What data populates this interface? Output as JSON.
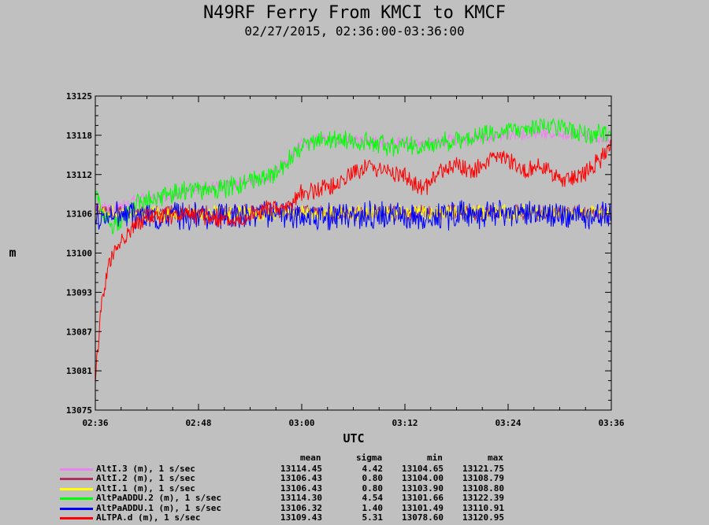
{
  "title": "N49RF Ferry From KMCI to KMCF",
  "subtitle": "02/27/2015, 02:36:00-03:36:00",
  "chart_data": {
    "type": "line",
    "xlabel": "UTC",
    "ylabel": "m",
    "x_ticks": [
      "02:36",
      "02:48",
      "03:00",
      "03:12",
      "03:24",
      "03:36"
    ],
    "x_range_minutes": [
      0,
      60
    ],
    "y_ticks": [
      13075,
      13081,
      13087,
      13093,
      13100,
      13106,
      13112,
      13118,
      13125
    ],
    "ylim": [
      13075,
      13125
    ],
    "grid": false,
    "legend_placement": "bottom",
    "legend_headers": [
      "mean",
      "sigma",
      "min",
      "max"
    ],
    "series": [
      {
        "name": "AltI.3 (m), 1 s/sec",
        "color": "#ee82ee",
        "stats": {
          "mean": "13114.45",
          "sigma": "4.42",
          "min": "13104.65",
          "max": "13121.75"
        },
        "x": [
          0,
          2,
          5,
          8,
          11,
          14,
          17,
          20,
          22,
          24,
          26,
          30,
          34,
          38,
          42,
          46,
          50,
          54,
          58,
          60
        ],
        "y": [
          13108,
          13107,
          13108.5,
          13109,
          13110,
          13110.5,
          13111,
          13112,
          13114,
          13117.5,
          13118,
          13118,
          13117.5,
          13117.5,
          13118,
          13118.5,
          13119,
          13119,
          13118.5,
          13118
        ],
        "noise": 0.8
      },
      {
        "name": "AltI.2 (m), 1 s/sec",
        "color": "#b03060",
        "stats": {
          "mean": "13106.43",
          "sigma": "0.80",
          "min": "13104.00",
          "max": "13108.79"
        },
        "x": [
          0,
          60
        ],
        "y": [
          13106.4,
          13106.4
        ],
        "noise": 1.1
      },
      {
        "name": "AltI.1 (m), 1 s/sec",
        "color": "#ffff00",
        "stats": {
          "mean": "13106.43",
          "sigma": "0.80",
          "min": "13103.90",
          "max": "13108.80"
        },
        "x": [
          0,
          60
        ],
        "y": [
          13106.4,
          13106.4
        ],
        "noise": 1.1
      },
      {
        "name": "AltPaADDU.2 (m), 1 s/sec",
        "color": "#00ff00",
        "stats": {
          "mean": "13114.30",
          "sigma": "4.54",
          "min": "13101.66",
          "max": "13122.39"
        },
        "x": [
          0,
          1,
          2,
          5,
          8,
          11,
          14,
          17,
          20,
          22,
          24,
          26,
          30,
          34,
          38,
          42,
          46,
          50,
          54,
          58,
          60
        ],
        "y": [
          13109,
          13106,
          13104,
          13108,
          13109,
          13110,
          13110,
          13111,
          13112,
          13114,
          13117,
          13118,
          13118,
          13117,
          13117,
          13118,
          13119,
          13120,
          13120,
          13119,
          13119
        ],
        "noise": 1.4
      },
      {
        "name": "AltPaADDU.1 (m), 1 s/sec",
        "color": "#0000ff",
        "stats": {
          "mean": "13106.32",
          "sigma": "1.40",
          "min": "13101.49",
          "max": "13110.91"
        },
        "x": [
          0,
          60
        ],
        "y": [
          13106,
          13106
        ],
        "noise": 1.9
      },
      {
        "name": "ALTPA.d (m), 1 s/sec",
        "color": "#ff0000",
        "stats": {
          "mean": "13109.43",
          "sigma": "5.31",
          "min": "13078.60",
          "max": "13120.95"
        },
        "x": [
          0,
          0.3,
          0.8,
          1.5,
          2.5,
          3.5,
          4.5,
          6,
          8,
          10,
          12,
          14,
          16,
          18,
          20,
          22,
          24,
          26,
          28,
          30,
          32,
          34,
          36,
          38,
          40,
          42,
          44,
          46,
          48,
          50,
          52,
          54,
          56,
          58,
          60
        ],
        "y": [
          13080,
          13085,
          13093,
          13098,
          13101,
          13103,
          13104,
          13106,
          13106,
          13106,
          13106,
          13105.5,
          13105,
          13106,
          13107,
          13107,
          13109.5,
          13110,
          13111,
          13113,
          13114,
          13113,
          13112,
          13110,
          13113,
          13114,
          13113,
          13115,
          13115,
          13113,
          13114,
          13112,
          13112,
          13114,
          13117
        ],
        "noise": 1.3
      }
    ]
  }
}
